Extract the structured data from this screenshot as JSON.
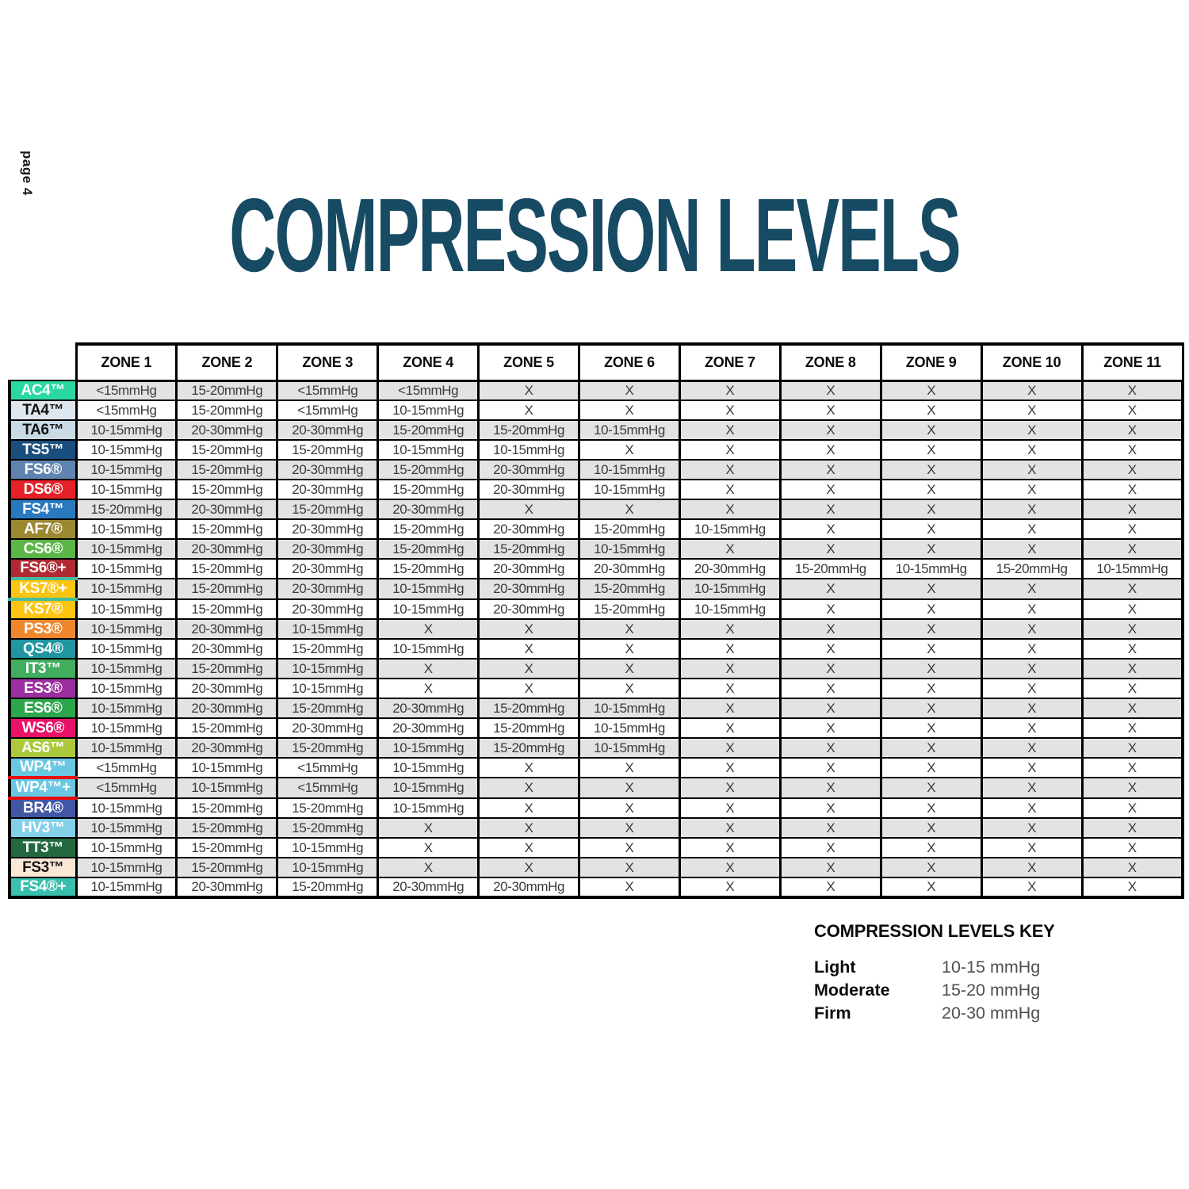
{
  "page": {
    "page_label": "page 4",
    "title": "COMPRESSION LEVELS"
  },
  "colors": {
    "title": "#174A63",
    "grid": "#000000",
    "stripe": "#E3E3E3",
    "cell_text": "#3B3B3B",
    "ks7_accent": "#44BDA1",
    "wp4_accent": "#E80C0C"
  },
  "table": {
    "zones": [
      "ZONE 1",
      "ZONE 2",
      "ZONE 3",
      "ZONE 4",
      "ZONE 5",
      "ZONE 6",
      "ZONE 7",
      "ZONE 8",
      "ZONE 9",
      "ZONE 10",
      "ZONE 11"
    ],
    "rows": [
      {
        "code": "AC4™",
        "bg": "#2BD8A3",
        "text_color": "#FFFFFF",
        "values": [
          "<15mmHg",
          "15-20mmHg",
          "<15mmHg",
          "<15mmHg",
          "X",
          "X",
          "X",
          "X",
          "X",
          "X",
          "X"
        ]
      },
      {
        "code": "TA4™",
        "bg": "#DEE7ED",
        "text_color": "#121212",
        "values": [
          "<15mmHg",
          "15-20mmHg",
          "<15mmHg",
          "10-15mmHg",
          "X",
          "X",
          "X",
          "X",
          "X",
          "X",
          "X"
        ]
      },
      {
        "code": "TA6™",
        "bg": "#C9DAE5",
        "text_color": "#121212",
        "values": [
          "10-15mmHg",
          "20-30mmHg",
          "20-30mmHg",
          "15-20mmHg",
          "15-20mmHg",
          "10-15mmHg",
          "X",
          "X",
          "X",
          "X",
          "X"
        ]
      },
      {
        "code": "TS5™",
        "bg": "#1A4E7E",
        "text_color": "#FFFFFF",
        "values": [
          "10-15mmHg",
          "15-20mmHg",
          "15-20mmHg",
          "10-15mmHg",
          "10-15mmHg",
          "X",
          "X",
          "X",
          "X",
          "X",
          "X"
        ]
      },
      {
        "code": "FS6®",
        "bg": "#5F84B0",
        "text_color": "#FFFFFF",
        "values": [
          "10-15mmHg",
          "15-20mmHg",
          "20-30mmHg",
          "15-20mmHg",
          "20-30mmHg",
          "10-15mmHg",
          "X",
          "X",
          "X",
          "X",
          "X"
        ]
      },
      {
        "code": "DS6®",
        "bg": "#E62129",
        "text_color": "#FFFFFF",
        "values": [
          "10-15mmHg",
          "15-20mmHg",
          "20-30mmHg",
          "15-20mmHg",
          "20-30mmHg",
          "10-15mmHg",
          "X",
          "X",
          "X",
          "X",
          "X"
        ]
      },
      {
        "code": "FS4™",
        "bg": "#2A79BE",
        "text_color": "#FFFFFF",
        "values": [
          "15-20mmHg",
          "20-30mmHg",
          "15-20mmHg",
          "20-30mmHg",
          "X",
          "X",
          "X",
          "X",
          "X",
          "X",
          "X"
        ]
      },
      {
        "code": "AF7®",
        "bg": "#9C8832",
        "text_color": "#FFFFFF",
        "values": [
          "10-15mmHg",
          "15-20mmHg",
          "20-30mmHg",
          "15-20mmHg",
          "20-30mmHg",
          "15-20mmHg",
          "10-15mmHg",
          "X",
          "X",
          "X",
          "X"
        ]
      },
      {
        "code": "CS6®",
        "bg": "#5BB647",
        "text_color": "#FFFFFF",
        "values": [
          "10-15mmHg",
          "20-30mmHg",
          "20-30mmHg",
          "15-20mmHg",
          "15-20mmHg",
          "10-15mmHg",
          "X",
          "X",
          "X",
          "X",
          "X"
        ]
      },
      {
        "code": "FS6®+",
        "bg": "#B02A33",
        "text_color": "#FFFFFF",
        "values": [
          "10-15mmHg",
          "15-20mmHg",
          "20-30mmHg",
          "15-20mmHg",
          "20-30mmHg",
          "20-30mmHg",
          "20-30mmHg",
          "15-20mmHg",
          "10-15mmHg",
          "15-20mmHg",
          "10-15mmHg"
        ]
      },
      {
        "code": "KS7®+",
        "bg": "#FCC511",
        "text_color": "#FFFFFF",
        "accent_color": "#44BDA1",
        "accent_sides": [
          "top",
          "bottom"
        ],
        "values": [
          "10-15mmHg",
          "15-20mmHg",
          "20-30mmHg",
          "10-15mmHg",
          "20-30mmHg",
          "15-20mmHg",
          "10-15mmHg",
          "X",
          "X",
          "X",
          "X"
        ]
      },
      {
        "code": "KS7®",
        "bg": "#FCC511",
        "text_color": "#FFFFFF",
        "values": [
          "10-15mmHg",
          "15-20mmHg",
          "20-30mmHg",
          "10-15mmHg",
          "20-30mmHg",
          "15-20mmHg",
          "10-15mmHg",
          "X",
          "X",
          "X",
          "X"
        ]
      },
      {
        "code": "PS3®",
        "bg": "#F0862B",
        "text_color": "#FFFFFF",
        "values": [
          "10-15mmHg",
          "20-30mmHg",
          "10-15mmHg",
          "X",
          "X",
          "X",
          "X",
          "X",
          "X",
          "X",
          "X"
        ]
      },
      {
        "code": "QS4®",
        "bg": "#1F96A2",
        "text_color": "#FFFFFF",
        "values": [
          "10-15mmHg",
          "20-30mmHg",
          "15-20mmHg",
          "10-15mmHg",
          "X",
          "X",
          "X",
          "X",
          "X",
          "X",
          "X"
        ]
      },
      {
        "code": "IT3™",
        "bg": "#41AE5F",
        "text_color": "#FFFFFF",
        "values": [
          "10-15mmHg",
          "15-20mmHg",
          "10-15mmHg",
          "X",
          "X",
          "X",
          "X",
          "X",
          "X",
          "X",
          "X"
        ]
      },
      {
        "code": "ES3®",
        "bg": "#9C2F9F",
        "text_color": "#FFFFFF",
        "values": [
          "10-15mmHg",
          "20-30mmHg",
          "10-15mmHg",
          "X",
          "X",
          "X",
          "X",
          "X",
          "X",
          "X",
          "X"
        ]
      },
      {
        "code": "ES6®",
        "bg": "#2EA64E",
        "text_color": "#FFFFFF",
        "values": [
          "10-15mmHg",
          "20-30mmHg",
          "15-20mmHg",
          "20-30mmHg",
          "15-20mmHg",
          "10-15mmHg",
          "X",
          "X",
          "X",
          "X",
          "X"
        ]
      },
      {
        "code": "WS6®",
        "bg": "#EA1268",
        "text_color": "#FFFFFF",
        "values": [
          "10-15mmHg",
          "15-20mmHg",
          "20-30mmHg",
          "20-30mmHg",
          "15-20mmHg",
          "10-15mmHg",
          "X",
          "X",
          "X",
          "X",
          "X"
        ]
      },
      {
        "code": "AS6™",
        "bg": "#ABC93A",
        "text_color": "#FFFFFF",
        "values": [
          "10-15mmHg",
          "20-30mmHg",
          "15-20mmHg",
          "10-15mmHg",
          "15-20mmHg",
          "10-15mmHg",
          "X",
          "X",
          "X",
          "X",
          "X"
        ]
      },
      {
        "code": "WP4™",
        "bg": "#69C7E2",
        "text_color": "#FFFFFF",
        "accent_color": "#E80C0C",
        "accent_sides": [
          "bottom"
        ],
        "values": [
          "<15mmHg",
          "10-15mmHg",
          "<15mmHg",
          "10-15mmHg",
          "X",
          "X",
          "X",
          "X",
          "X",
          "X",
          "X"
        ]
      },
      {
        "code": "WP4™+",
        "bg": "#69C7E2",
        "text_color": "#FFFFFF",
        "accent_color": "#E80C0C",
        "accent_sides": [
          "top",
          "bottom"
        ],
        "values": [
          "<15mmHg",
          "10-15mmHg",
          "<15mmHg",
          "10-15mmHg",
          "X",
          "X",
          "X",
          "X",
          "X",
          "X",
          "X"
        ]
      },
      {
        "code": "BR4®",
        "bg": "#4157A6",
        "text_color": "#FFFFFF",
        "values": [
          "10-15mmHg",
          "15-20mmHg",
          "15-20mmHg",
          "10-15mmHg",
          "X",
          "X",
          "X",
          "X",
          "X",
          "X",
          "X"
        ]
      },
      {
        "code": "HV3™",
        "bg": "#83D0E8",
        "text_color": "#FFFFFF",
        "values": [
          "10-15mmHg",
          "15-20mmHg",
          "15-20mmHg",
          "X",
          "X",
          "X",
          "X",
          "X",
          "X",
          "X",
          "X"
        ]
      },
      {
        "code": "TT3™",
        "bg": "#23693F",
        "text_color": "#FFFFFF",
        "values": [
          "10-15mmHg",
          "15-20mmHg",
          "10-15mmHg",
          "X",
          "X",
          "X",
          "X",
          "X",
          "X",
          "X",
          "X"
        ]
      },
      {
        "code": "FS3™",
        "bg": "#FAE7D5",
        "text_color": "#121212",
        "values": [
          "10-15mmHg",
          "15-20mmHg",
          "10-15mmHg",
          "X",
          "X",
          "X",
          "X",
          "X",
          "X",
          "X",
          "X"
        ]
      },
      {
        "code": "FS4®+",
        "bg": "#39BFAE",
        "text_color": "#FFFFFF",
        "values": [
          "10-15mmHg",
          "20-30mmHg",
          "15-20mmHg",
          "20-30mmHg",
          "20-30mmHg",
          "X",
          "X",
          "X",
          "X",
          "X",
          "X"
        ]
      }
    ]
  },
  "key": {
    "title": "COMPRESSION LEVELS KEY",
    "entries": [
      {
        "label": "Light",
        "value": "10-15 mmHg"
      },
      {
        "label": "Moderate",
        "value": "15-20 mmHg"
      },
      {
        "label": "Firm",
        "value": "20-30 mmHg"
      }
    ]
  }
}
